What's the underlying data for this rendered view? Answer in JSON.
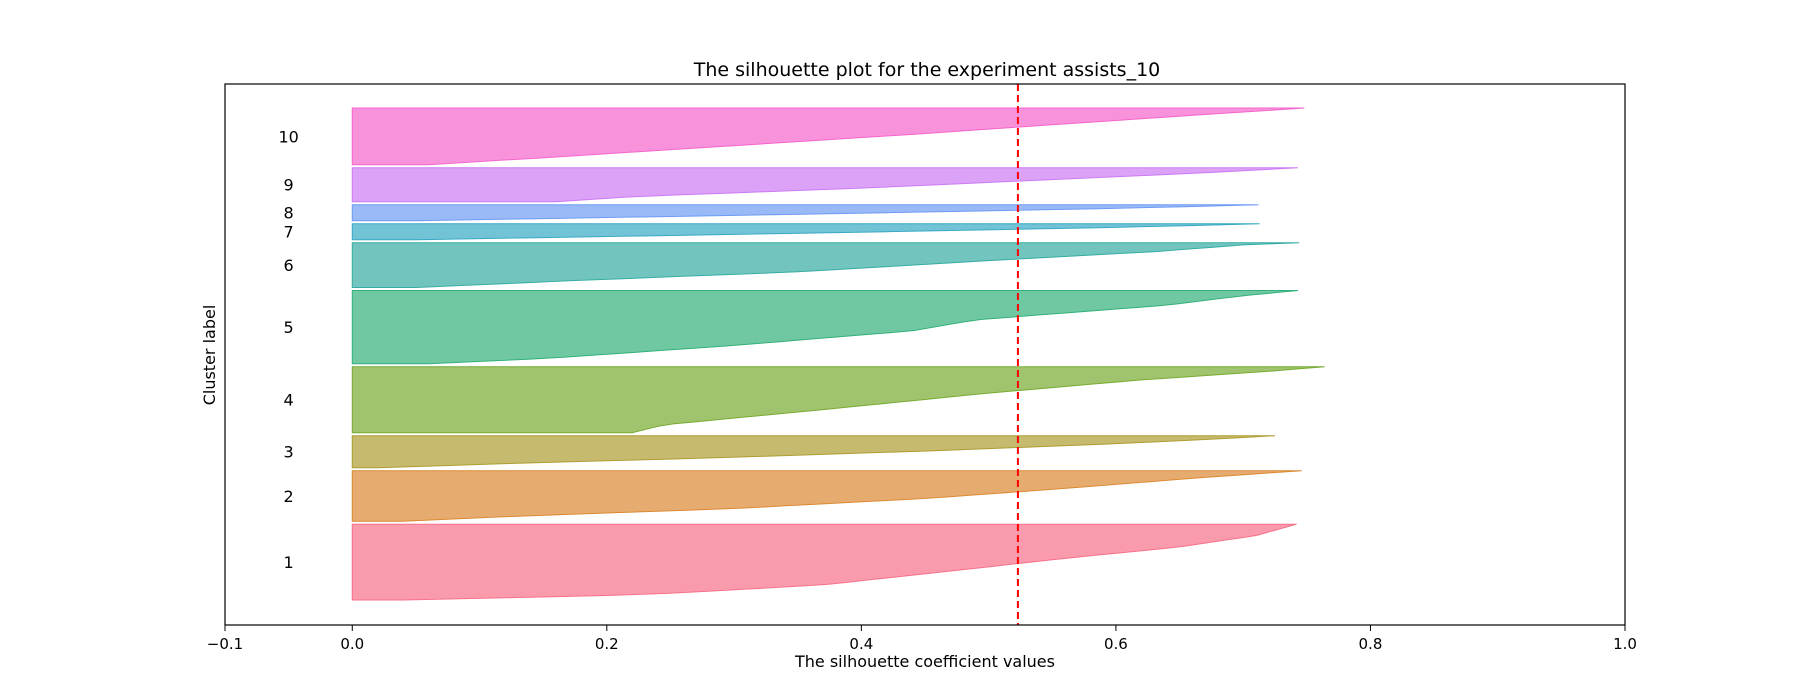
{
  "chart_data": {
    "type": "area",
    "title": "The silhouette plot for the experiment assists_10",
    "xlabel": "The silhouette coefficient values",
    "ylabel": "Cluster label",
    "xlim": [
      -0.1,
      1.0
    ],
    "xticks": [
      -0.1,
      0.0,
      0.2,
      0.4,
      0.6,
      0.8,
      1.0
    ],
    "xtick_labels": [
      "−0.1",
      "0.0",
      "0.2",
      "0.4",
      "0.6",
      "0.8",
      "1.0"
    ],
    "yticks_visible": false,
    "average_silhouette_score": 0.523,
    "average_line_style": "red dashed vertical line",
    "clusters": [
      {
        "label": "1",
        "color": "#f77189",
        "size_share": 0.147,
        "max_value": 0.742,
        "profile": [
          [
            0.0,
            0.04
          ],
          [
            0.07,
            0.23
          ],
          [
            0.2,
            0.37
          ],
          [
            0.4,
            0.48
          ],
          [
            0.55,
            0.56
          ],
          [
            0.7,
            0.65
          ],
          [
            0.85,
            0.71
          ],
          [
            1.0,
            0.742
          ]
        ]
      },
      {
        "label": "2",
        "color": "#dc8932",
        "size_share": 0.098,
        "max_value": 0.746,
        "profile": [
          [
            0.0,
            0.04
          ],
          [
            0.1,
            0.13
          ],
          [
            0.25,
            0.3
          ],
          [
            0.45,
            0.45
          ],
          [
            0.65,
            0.56
          ],
          [
            0.85,
            0.66
          ],
          [
            1.0,
            0.746
          ]
        ]
      },
      {
        "label": "3",
        "color": "#ae9d31",
        "size_share": 0.062,
        "max_value": 0.725,
        "profile": [
          [
            0.0,
            0.02
          ],
          [
            0.15,
            0.14
          ],
          [
            0.35,
            0.32
          ],
          [
            0.55,
            0.47
          ],
          [
            0.75,
            0.6
          ],
          [
            0.9,
            0.68
          ],
          [
            1.0,
            0.725
          ]
        ]
      },
      {
        "label": "4",
        "color": "#77ab31",
        "size_share": 0.128,
        "max_value": 0.764,
        "profile": [
          [
            0.0,
            0.22
          ],
          [
            0.12,
            0.245
          ],
          [
            0.35,
            0.37
          ],
          [
            0.6,
            0.5
          ],
          [
            0.8,
            0.62
          ],
          [
            0.93,
            0.72
          ],
          [
            1.0,
            0.764
          ]
        ]
      },
      {
        "label": "5",
        "color": "#33b07a",
        "size_share": 0.142,
        "max_value": 0.743,
        "profile": [
          [
            0.0,
            0.06
          ],
          [
            0.07,
            0.15
          ],
          [
            0.25,
            0.3
          ],
          [
            0.45,
            0.44
          ],
          [
            0.6,
            0.49
          ],
          [
            0.8,
            0.64
          ],
          [
            0.93,
            0.7
          ],
          [
            1.0,
            0.743
          ]
        ]
      },
      {
        "label": "6",
        "color": "#36ada4",
        "size_share": 0.087,
        "max_value": 0.744,
        "profile": [
          [
            0.0,
            0.05
          ],
          [
            0.15,
            0.17
          ],
          [
            0.35,
            0.35
          ],
          [
            0.6,
            0.5
          ],
          [
            0.8,
            0.63
          ],
          [
            0.95,
            0.7
          ],
          [
            1.0,
            0.744
          ]
        ]
      },
      {
        "label": "7",
        "color": "#38a9c5",
        "size_share": 0.031,
        "max_value": 0.713,
        "profile": [
          [
            0.0,
            0.05
          ],
          [
            0.25,
            0.24
          ],
          [
            0.5,
            0.42
          ],
          [
            0.8,
            0.62
          ],
          [
            1.0,
            0.713
          ]
        ]
      },
      {
        "label": "8",
        "color": "#6e9bf4",
        "size_share": 0.031,
        "max_value": 0.712,
        "profile": [
          [
            0.0,
            0.05
          ],
          [
            0.25,
            0.24
          ],
          [
            0.5,
            0.42
          ],
          [
            0.8,
            0.62
          ],
          [
            1.0,
            0.712
          ]
        ]
      },
      {
        "label": "9",
        "color": "#cc7af4",
        "size_share": 0.066,
        "max_value": 0.743,
        "profile": [
          [
            0.0,
            0.16
          ],
          [
            0.15,
            0.22
          ],
          [
            0.4,
            0.4
          ],
          [
            0.65,
            0.55
          ],
          [
            0.85,
            0.67
          ],
          [
            1.0,
            0.743
          ]
        ]
      },
      {
        "label": "10",
        "color": "#f565cc",
        "size_share": 0.11,
        "max_value": 0.748,
        "profile": [
          [
            0.0,
            0.06
          ],
          [
            0.15,
            0.17
          ],
          [
            0.35,
            0.31
          ],
          [
            0.55,
            0.45
          ],
          [
            0.75,
            0.58
          ],
          [
            0.9,
            0.68
          ],
          [
            1.0,
            0.748
          ]
        ]
      }
    ]
  }
}
